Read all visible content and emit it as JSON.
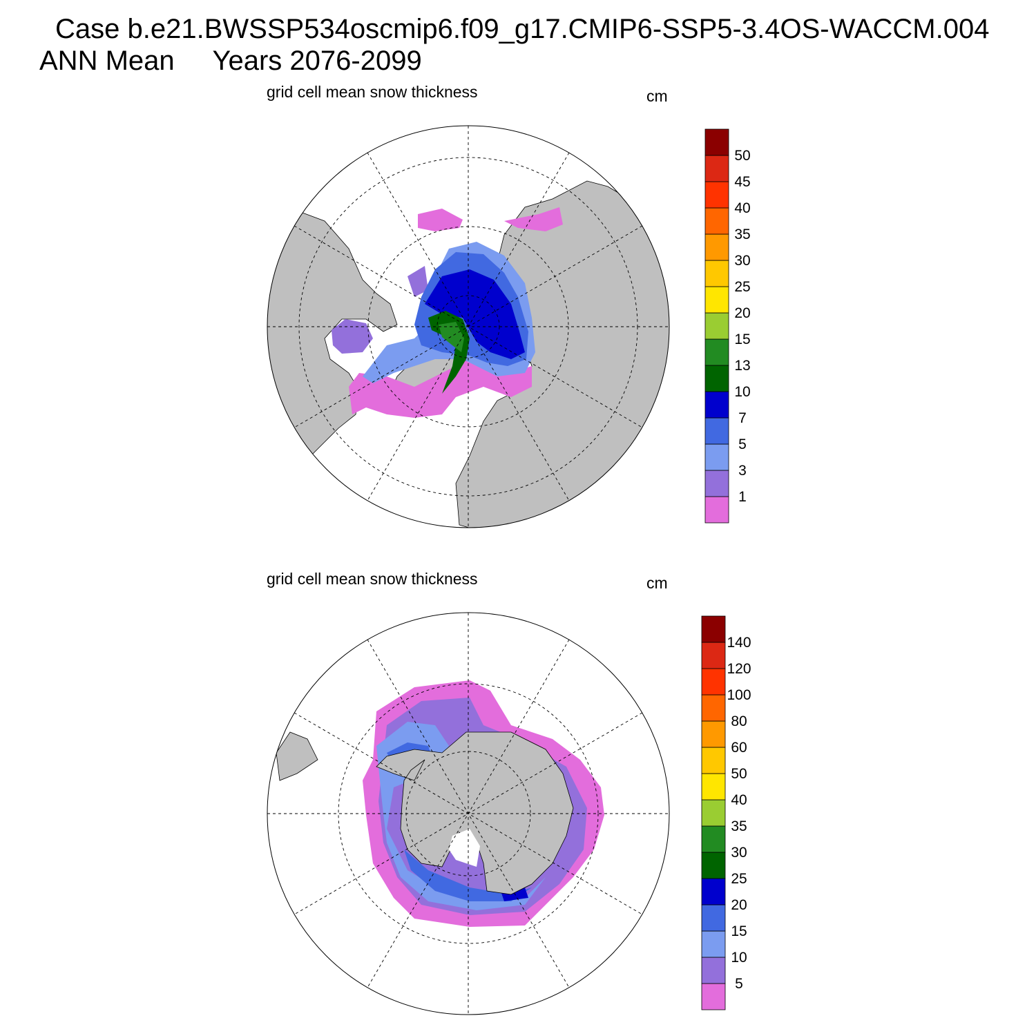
{
  "header": {
    "title": "Case b.e21.BWSSP534oscmip6.f09_g17.CMIP6-SSP5-3.4OS-WACCM.004",
    "subtitle": "ANN Mean     Years 2076-2099"
  },
  "colors": {
    "land": "#bfbfbf",
    "ocean": "#ffffff",
    "palette": [
      "#e36ddc",
      "#9370db",
      "#7b9cf0",
      "#4169e1",
      "#0000cd",
      "#006400",
      "#228b22",
      "#9acd32",
      "#ffe600",
      "#ffc800",
      "#ff9900",
      "#ff6600",
      "#ff3300",
      "#dc2814",
      "#8b0000"
    ]
  },
  "panels": [
    {
      "id": "north",
      "title": "grid cell mean snow thickness",
      "units": "cm",
      "hemisphere": "Northern Hemisphere",
      "colorbar": {
        "labels": [
          "1",
          "3",
          "5",
          "7",
          "10",
          "13",
          "15",
          "20",
          "25",
          "30",
          "35",
          "40",
          "45",
          "50"
        ]
      }
    },
    {
      "id": "south",
      "title": "grid cell mean snow thickness",
      "units": "cm",
      "hemisphere": "Southern Hemisphere",
      "colorbar": {
        "labels": [
          "5",
          "10",
          "15",
          "20",
          "25",
          "30",
          "35",
          "40",
          "50",
          "60",
          "80",
          "100",
          "120",
          "140"
        ]
      }
    }
  ]
}
